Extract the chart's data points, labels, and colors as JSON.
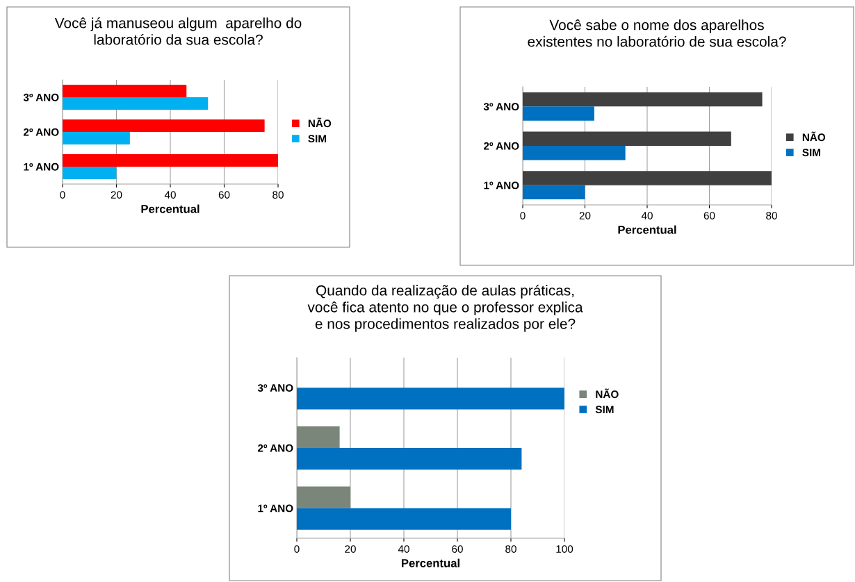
{
  "chart_data": [
    {
      "type": "bar",
      "orientation": "horizontal",
      "title": "Você já manuseou algum  aparelho do\nlaboratório da sua escola?",
      "xlabel": "Percentual",
      "categories": [
        "3º ANO",
        "2º ANO",
        "1º ANO"
      ],
      "series": [
        {
          "name": "NÃO",
          "color": "#ff0000",
          "values": [
            46,
            75,
            80
          ]
        },
        {
          "name": "SIM",
          "color": "#00b0f0",
          "values": [
            54,
            25,
            20
          ]
        }
      ],
      "xlim": [
        0,
        80
      ],
      "xticks": [
        0,
        20,
        40,
        60,
        80
      ],
      "grid": "x",
      "legend": "right"
    },
    {
      "type": "bar",
      "orientation": "horizontal",
      "title": "Você sabe o nome dos aparelhos\nexistentes no laboratório de sua escola?",
      "xlabel": "Percentual",
      "categories": [
        "3º ANO",
        "2º ANO",
        "1º ANO"
      ],
      "series": [
        {
          "name": "NÃO",
          "color": "#404040",
          "values": [
            77,
            67,
            80
          ]
        },
        {
          "name": "SIM",
          "color": "#0070c0",
          "values": [
            23,
            33,
            20
          ]
        }
      ],
      "xlim": [
        0,
        80
      ],
      "xticks": [
        0,
        20,
        40,
        60,
        80
      ],
      "grid": "x",
      "legend": "right"
    },
    {
      "type": "bar",
      "orientation": "horizontal",
      "title": "Quando da realização de aulas práticas,\nvocê fica atento no que o professor explica\ne nos procedimentos realizados por ele?",
      "xlabel": "Percentual",
      "categories": [
        "3º ANO",
        "2º ANO",
        "1º ANO"
      ],
      "series": [
        {
          "name": "NÃO",
          "color": "#7b867b",
          "values": [
            0,
            16,
            20
          ]
        },
        {
          "name": "SIM",
          "color": "#0070c0",
          "values": [
            100,
            84,
            80
          ]
        }
      ],
      "xlim": [
        0,
        100
      ],
      "xticks": [
        0,
        20,
        40,
        60,
        80,
        100
      ],
      "grid": "x",
      "legend": "right"
    }
  ]
}
